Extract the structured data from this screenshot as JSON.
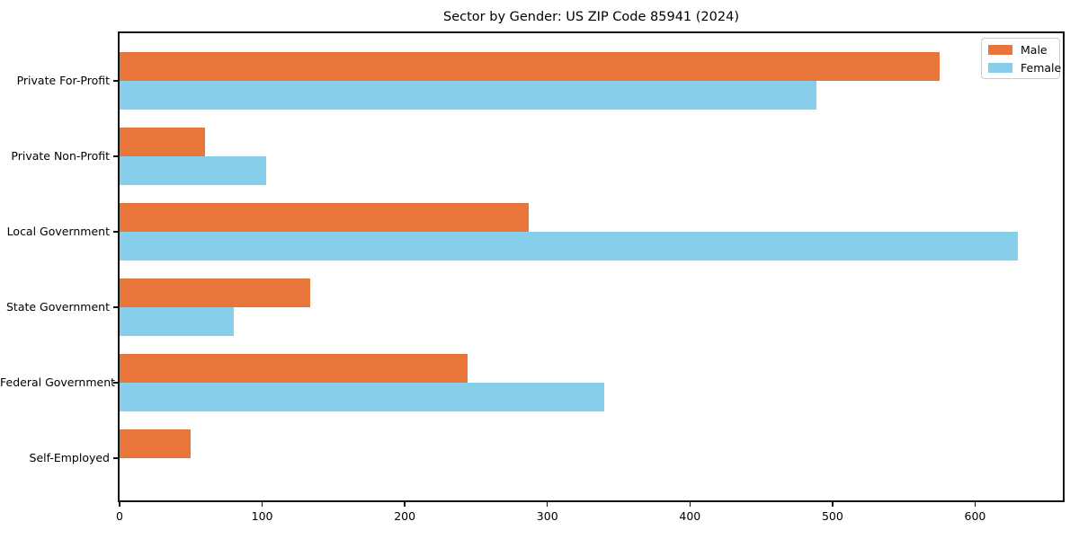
{
  "chart_data": {
    "type": "bar",
    "orientation": "horizontal",
    "title": "Sector by Gender: US ZIP Code 85941 (2024)",
    "categories": [
      "Private For-Profit",
      "Private Non-Profit",
      "Local Government",
      "State Government",
      "Federal Government",
      "Self-Employed"
    ],
    "series": [
      {
        "name": "Male",
        "color": "#E8763B",
        "values": [
          575,
          60,
          287,
          134,
          244,
          50
        ]
      },
      {
        "name": "Female",
        "color": "#87CEEB",
        "values": [
          489,
          103,
          630,
          80,
          340,
          0
        ]
      }
    ],
    "xticks": [
      0,
      100,
      200,
      300,
      400,
      500,
      600
    ],
    "xlim": [
      0,
      661.5
    ],
    "xlabel": "",
    "ylabel": "",
    "grid": false,
    "legend_position": "upper right",
    "axis_color": "#0f0f0f",
    "background_color": "#ffffff"
  }
}
